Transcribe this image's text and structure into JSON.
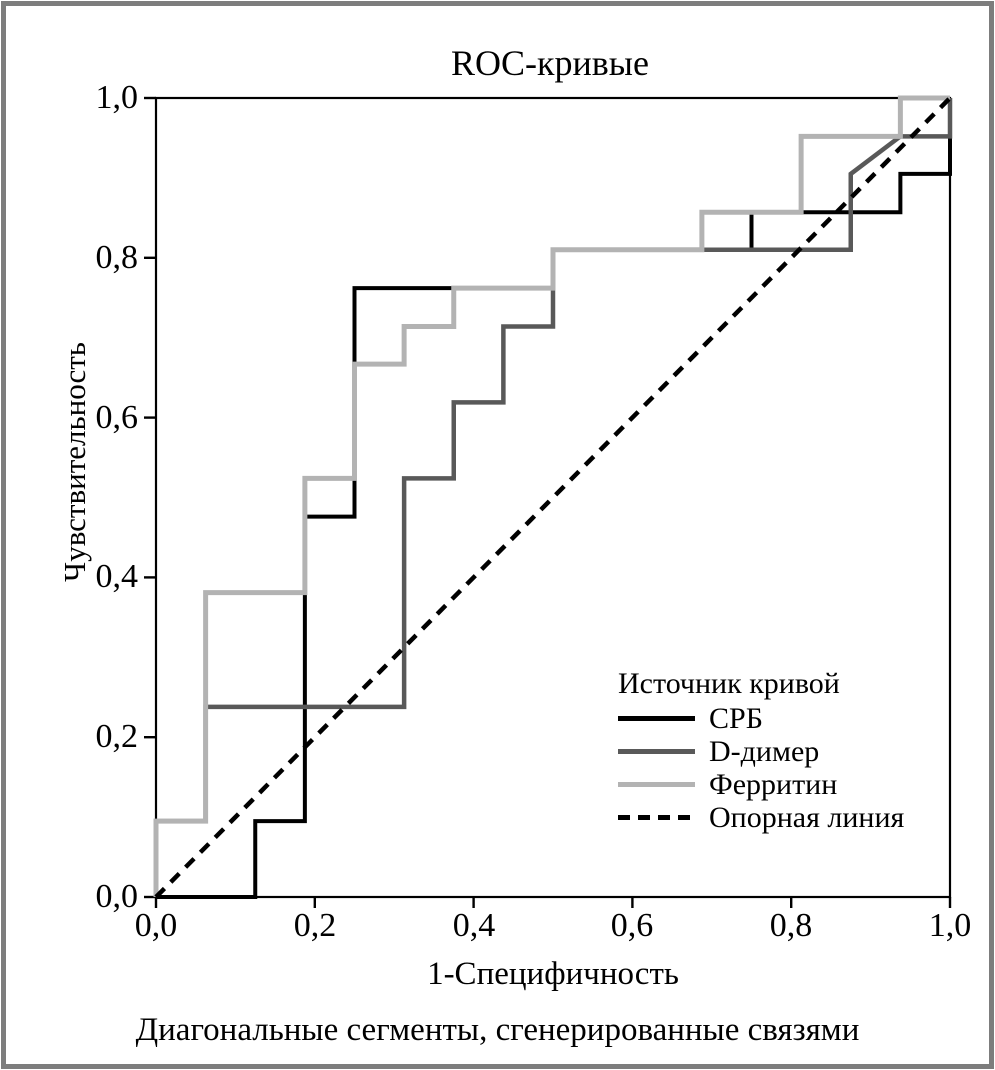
{
  "chart_data": {
    "type": "line",
    "subtype": "roc-step-curves",
    "title": "ROC-кривые",
    "xlabel": "1-Специфичность",
    "ylabel": "Чувствительность",
    "caption": "Диагональные сегменты, сгенерированные связями",
    "xlim": [
      0,
      1
    ],
    "ylim": [
      0,
      1
    ],
    "grid": false,
    "x_tick_values": [
      0,
      0.2,
      0.4,
      0.6,
      0.8,
      1.0
    ],
    "y_tick_values": [
      0,
      0.2,
      0.4,
      0.6,
      0.8,
      1.0
    ],
    "x_tick_labels": [
      "0,0",
      "0,2",
      "0,4",
      "0,6",
      "0,8",
      "1,0"
    ],
    "y_tick_labels": [
      "0,0",
      "0,2",
      "0,4",
      "0,6",
      "0,8",
      "1,0"
    ],
    "legend_title": "Источник кривой",
    "legend_position": "inside bottom-right",
    "series": [
      {
        "name": "СРБ",
        "color": "#000000",
        "style": "solid",
        "points": [
          [
            0,
            0
          ],
          [
            0.125,
            0
          ],
          [
            0.125,
            0.095
          ],
          [
            0.1875,
            0.095
          ],
          [
            0.1875,
            0.476
          ],
          [
            0.25,
            0.476
          ],
          [
            0.25,
            0.762
          ],
          [
            0.5,
            0.762
          ],
          [
            0.5,
            0.81
          ],
          [
            0.75,
            0.81
          ],
          [
            0.75,
            0.857
          ],
          [
            0.9375,
            0.857
          ],
          [
            0.9375,
            0.905
          ],
          [
            1,
            0.905
          ],
          [
            1,
            1
          ]
        ]
      },
      {
        "name": "D-димер",
        "color": "#595959",
        "style": "solid",
        "points": [
          [
            0,
            0
          ],
          [
            0,
            0.095
          ],
          [
            0.0625,
            0.095
          ],
          [
            0.0625,
            0.238
          ],
          [
            0.3125,
            0.238
          ],
          [
            0.3125,
            0.524
          ],
          [
            0.375,
            0.524
          ],
          [
            0.375,
            0.619
          ],
          [
            0.4375,
            0.619
          ],
          [
            0.4375,
            0.714
          ],
          [
            0.5,
            0.714
          ],
          [
            0.5,
            0.81
          ],
          [
            0.875,
            0.81
          ],
          [
            0.875,
            0.905
          ],
          [
            0.9375,
            0.952
          ],
          [
            1,
            0.952
          ],
          [
            1,
            1
          ]
        ]
      },
      {
        "name": "Ферритин",
        "color": "#b3b3b3",
        "style": "solid",
        "points": [
          [
            0,
            0
          ],
          [
            0,
            0.095
          ],
          [
            0.0625,
            0.095
          ],
          [
            0.0625,
            0.381
          ],
          [
            0.1875,
            0.381
          ],
          [
            0.1875,
            0.524
          ],
          [
            0.25,
            0.524
          ],
          [
            0.25,
            0.667
          ],
          [
            0.3125,
            0.667
          ],
          [
            0.3125,
            0.714
          ],
          [
            0.375,
            0.714
          ],
          [
            0.375,
            0.762
          ],
          [
            0.5,
            0.762
          ],
          [
            0.5,
            0.81
          ],
          [
            0.6875,
            0.81
          ],
          [
            0.6875,
            0.857
          ],
          [
            0.8125,
            0.857
          ],
          [
            0.8125,
            0.952
          ],
          [
            0.9375,
            0.952
          ],
          [
            0.9375,
            1
          ],
          [
            1,
            1
          ]
        ]
      },
      {
        "name": "Опорная линия",
        "color": "#000000",
        "style": "dashed",
        "points": [
          [
            0,
            0
          ],
          [
            1,
            1
          ]
        ]
      }
    ]
  },
  "colors": {
    "frame": "#7d7d7d",
    "axis": "#000000",
    "background": "#ffffff"
  }
}
